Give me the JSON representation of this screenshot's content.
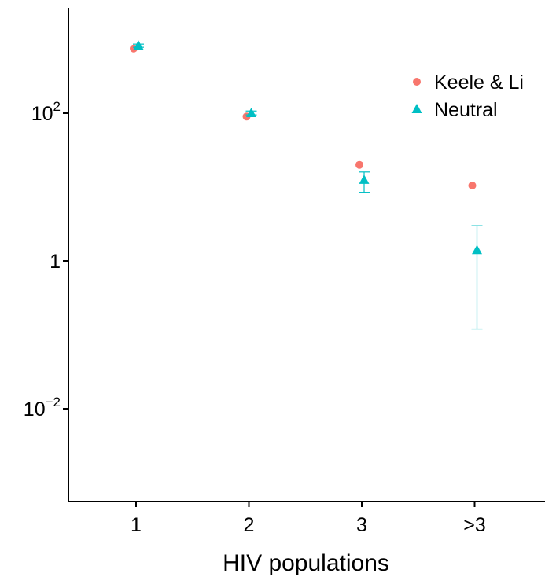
{
  "chart_data": {
    "type": "scatter",
    "xlabel": "HIV populations",
    "ylabel": "",
    "categories": [
      "1",
      "2",
      "3",
      ">3"
    ],
    "y_scale": "log10",
    "ylim": [
      0.0004,
      20000
    ],
    "y_ticks": [
      {
        "value": 100,
        "base": "10",
        "exp": "2"
      },
      {
        "value": 1,
        "base": "1",
        "exp": ""
      },
      {
        "value": 0.01,
        "base": "10",
        "exp": "−2"
      }
    ],
    "grid": false,
    "legend_position": "top-right",
    "series": [
      {
        "name": "Keele & Li",
        "marker": "circle",
        "color": "#F8766D",
        "values": [
          750,
          90,
          20,
          10.5
        ],
        "error": null
      },
      {
        "name": "Neutral",
        "marker": "triangle",
        "color": "#00BFC4",
        "values": [
          820,
          100,
          12.5,
          1.4
        ],
        "error_low": [
          780,
          95,
          8.5,
          0.12
        ],
        "error_high": [
          860,
          107,
          16,
          3.0
        ]
      }
    ]
  }
}
